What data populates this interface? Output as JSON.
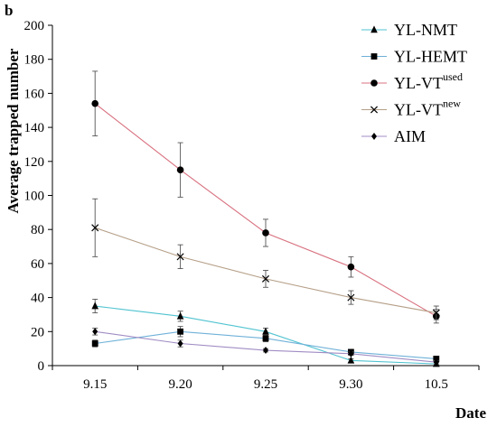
{
  "chart_data": {
    "type": "line",
    "panel_label": "b",
    "xlabel": "Date",
    "ylabel": "Average trapped number",
    "categories": [
      "9.15",
      "9.20",
      "9.25",
      "9.30",
      "10.5"
    ],
    "ylim": [
      0,
      200
    ],
    "yticks": [
      "0",
      "20",
      "40",
      "60",
      "80",
      "100",
      "120",
      "140",
      "160",
      "180",
      "200"
    ],
    "grid": false,
    "legend_position": "top-right",
    "series": [
      {
        "name": "YL-NMT",
        "name_sup": "",
        "marker": "triangle",
        "color": "#4fc3d0",
        "values": [
          35,
          29,
          20,
          3,
          1
        ],
        "errors": [
          4,
          3,
          2,
          1,
          1
        ]
      },
      {
        "name": "YL-HEMT",
        "name_sup": "",
        "marker": "square",
        "color": "#6fb1d8",
        "values": [
          13,
          20,
          16,
          8,
          4
        ],
        "errors": [
          2,
          3,
          2,
          1,
          1
        ]
      },
      {
        "name": "YL-VT",
        "name_sup": "used",
        "marker": "circle",
        "color": "#d8707f",
        "values": [
          154,
          115,
          78,
          58,
          29
        ],
        "errors": [
          19,
          16,
          8,
          6,
          4
        ]
      },
      {
        "name": "YL-VT",
        "name_sup": "new",
        "marker": "x",
        "color": "#b59f87",
        "values": [
          81,
          64,
          51,
          40,
          31
        ],
        "errors": [
          17,
          7,
          5,
          4,
          4
        ]
      },
      {
        "name": "AIM",
        "name_sup": "",
        "marker": "diamond",
        "color": "#a08cc4",
        "values": [
          20,
          13,
          9,
          7,
          2
        ],
        "errors": [
          2,
          2,
          1,
          1,
          1
        ]
      }
    ]
  }
}
